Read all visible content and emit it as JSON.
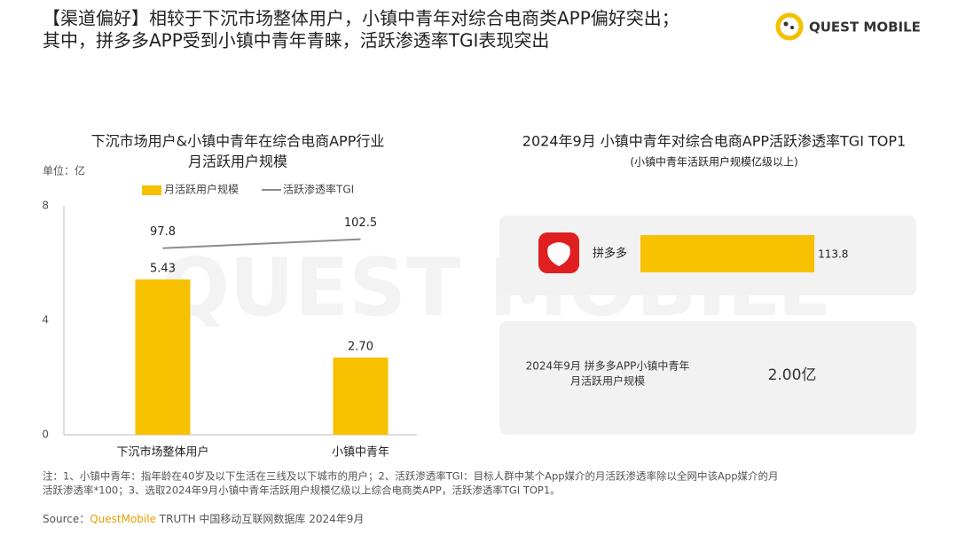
{
  "header": {
    "title_lines": [
      "【渠道偏好】相较于下沉市场整体用户，小镇中青年对综合电商类APP偏好突出；",
      "其中，拼多多APP受到小镇中青年青睐，活跃渗透率TGI表现突出"
    ]
  },
  "logo": "QUEST MOBILE",
  "watermark": "QUEST MOBILE",
  "chart_data": [
    {
      "type": "bar",
      "title": [
        "下沉市场用户&小镇中青年在综合电商APP行业",
        "月活跃用户规模"
      ],
      "unit_label": "单位：亿",
      "categories": [
        "下沉市场整体用户",
        "小镇中青年"
      ],
      "series": [
        {
          "name": "月活跃用户规模",
          "color": "#f7c100",
          "values": [
            5.43,
            2.7
          ],
          "value_labels": [
            "5.43",
            "2.70"
          ]
        },
        {
          "name": "活跃渗透率TGI",
          "color": "#8c8c8c",
          "values": [
            97.8,
            102.5
          ],
          "axis": "y2"
        }
      ],
      "ylim": [
        0,
        8
      ],
      "yticks": [
        0,
        4,
        8
      ],
      "y2lim": [
        0,
        120
      ]
    },
    {
      "type": "hbar",
      "title": "2024年9月 小镇中青年对综合电商APP活跃渗透率TGI TOP1",
      "subtitle": "(小镇中青年活跃用户规模亿级以上)",
      "categories": [
        "拼多多"
      ],
      "values": [
        113.8
      ],
      "color": "#f7c100",
      "xlim": [
        0,
        130
      ]
    }
  ],
  "card": {
    "label_lines": [
      "2024年9月 拼多多APP小镇中青年",
      "月活跃用户规模"
    ],
    "value": "2.00亿"
  },
  "note_lines": [
    "注：1、小镇中青年：指年龄在40岁及以下生活在三线及以下城市的用户；2、活跃渗透率TGI：目标人群中某个App媒介的月活跃渗透率除以全网中该App媒介的月",
    "活跃渗透率*100；3、选取2024年9月小镇中青年活跃用户规模亿级以上综合电商类APP，活跃渗透率TGI TOP1。"
  ],
  "source": {
    "prefix": "Source：",
    "brand": "QuestMobile",
    "rest": " TRUTH 中国移动互联网数据库 2024年9月"
  }
}
